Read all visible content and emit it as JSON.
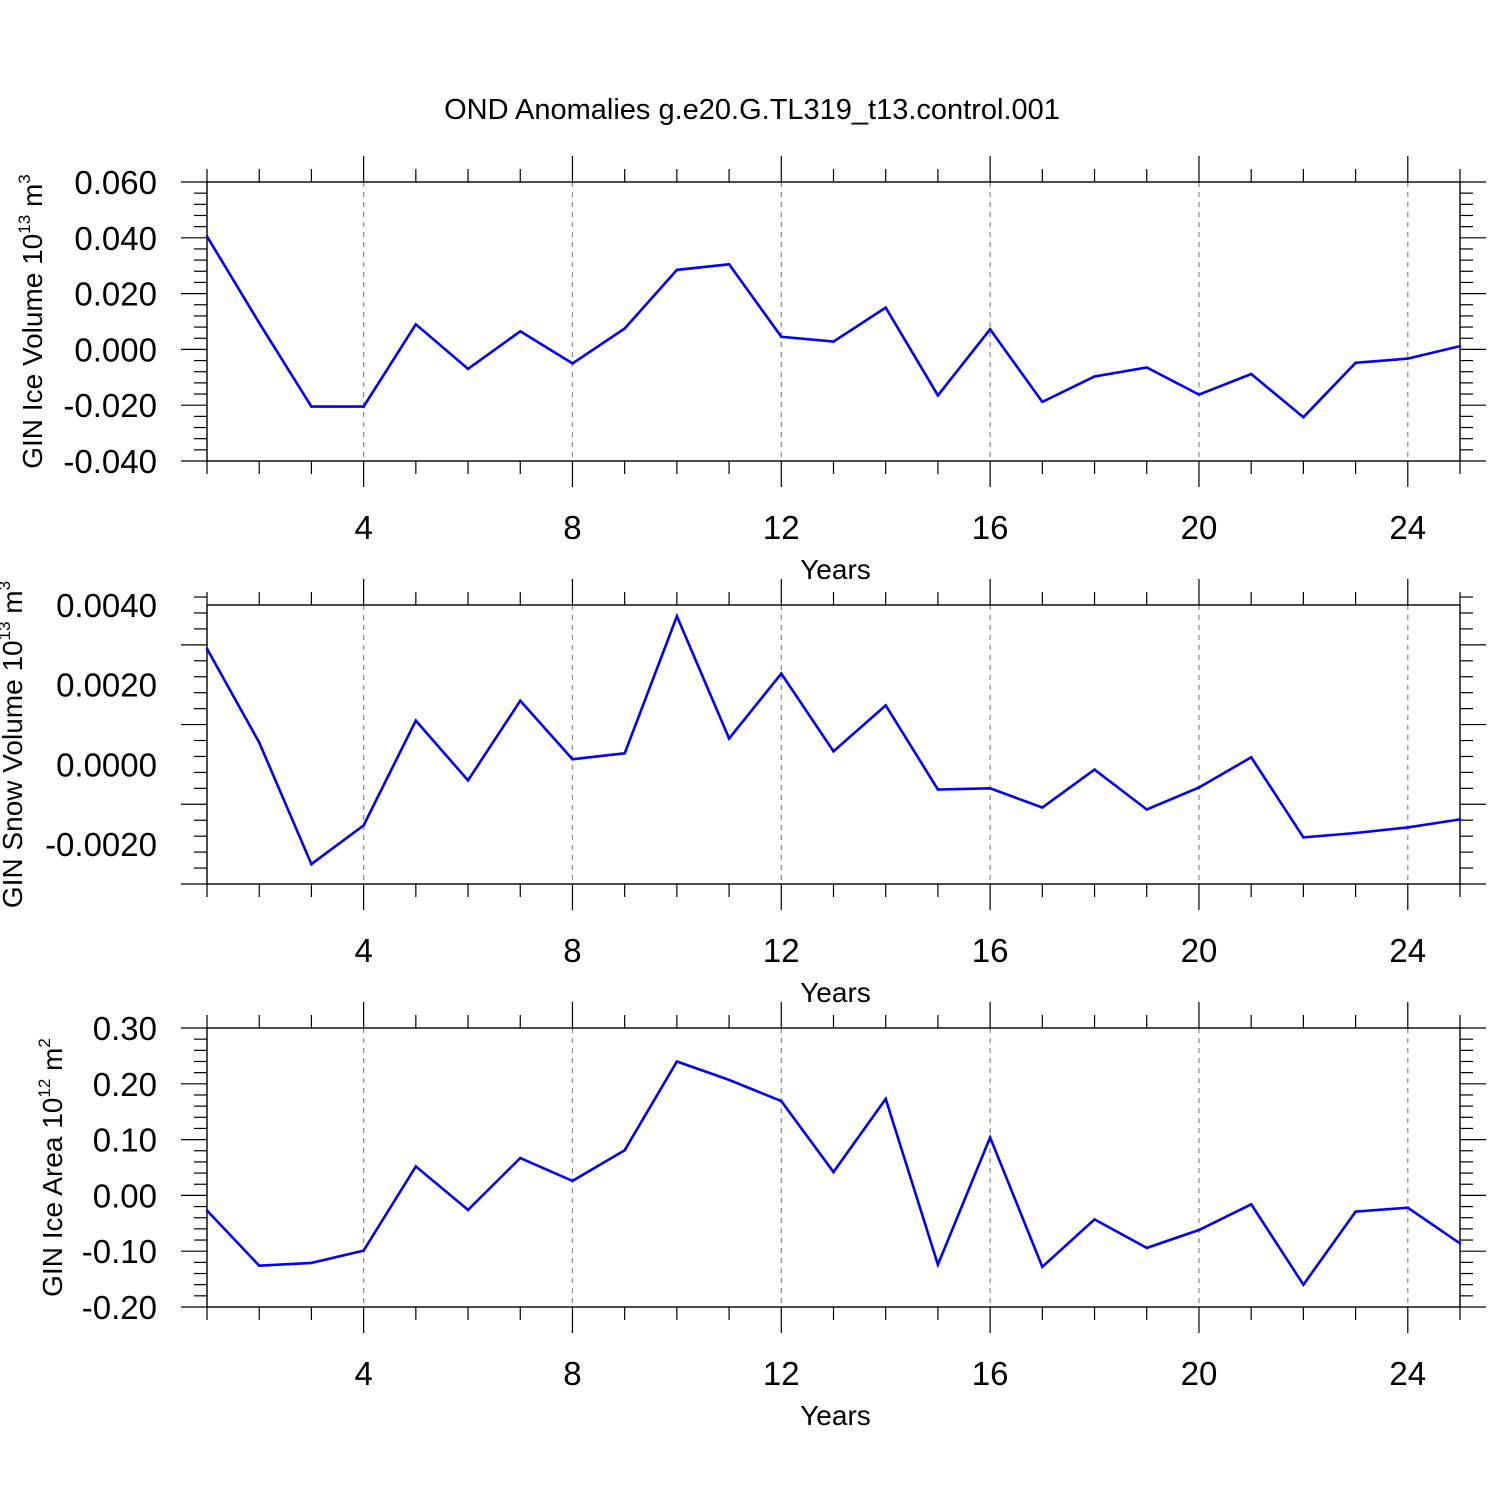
{
  "figure": {
    "title": "OND Anomalies g.e20.G.TL319_t13.control.001",
    "line_color": "#0000ff",
    "grid_color": "#888888"
  },
  "chart_data": [
    {
      "type": "line",
      "title": "OND Anomalies g.e20.G.TL319_t13.control.001",
      "xlabel": "Years",
      "ylabel": {
        "text": "GIN Ice Volume 10",
        "exponent": "13",
        "unit": " m",
        "unit_exponent": "3"
      },
      "xlim": [
        1,
        25
      ],
      "ylim": [
        -0.04,
        0.06
      ],
      "xticks": [
        4,
        8,
        12,
        16,
        20,
        24
      ],
      "xtick_labels": [
        "4",
        "8",
        "12",
        "16",
        "20",
        "24"
      ],
      "yticks": [
        -0.04,
        -0.02,
        0.0,
        0.02,
        0.04,
        0.06
      ],
      "ytick_labels": [
        "-0.040",
        "-0.020",
        "0.000",
        "0.020",
        "0.040",
        "0.060"
      ],
      "grid": "vertical dashed at major x ticks",
      "x": [
        1,
        2,
        3,
        4,
        5,
        6,
        7,
        8,
        9,
        10,
        11,
        12,
        13,
        14,
        15,
        16,
        17,
        18,
        19,
        20,
        21,
        22,
        23,
        24,
        25
      ],
      "series": [
        {
          "name": "GIN Ice Volume",
          "values": [
            0.0405,
            0.0095,
            -0.0205,
            -0.0205,
            0.009,
            -0.007,
            0.0065,
            -0.005,
            0.0075,
            0.0285,
            0.0305,
            0.0045,
            0.0028,
            0.015,
            -0.0165,
            0.0072,
            -0.0188,
            -0.0097,
            -0.0065,
            -0.0162,
            -0.0088,
            -0.0243,
            -0.0048,
            -0.0033,
            0.0012
          ]
        }
      ]
    },
    {
      "type": "line",
      "xlabel": "Years",
      "ylabel": {
        "text": "GIN Snow Volume 10",
        "exponent": "13",
        "unit": " m",
        "unit_exponent": "3"
      },
      "xlim": [
        1,
        25
      ],
      "ylim": [
        -0.003,
        0.004
      ],
      "xticks": [
        4,
        8,
        12,
        16,
        20,
        24
      ],
      "xtick_labels": [
        "4",
        "8",
        "12",
        "16",
        "20",
        "24"
      ],
      "yticks": [
        -0.002,
        0.0,
        0.002,
        0.004
      ],
      "ytick_labels": [
        "-0.0020",
        "0.0000",
        "0.0020",
        "0.0040"
      ],
      "grid": "vertical dashed at major x ticks",
      "x": [
        1,
        2,
        3,
        4,
        5,
        6,
        7,
        8,
        9,
        10,
        11,
        12,
        13,
        14,
        15,
        16,
        17,
        18,
        19,
        20,
        21,
        22,
        23,
        24,
        25
      ],
      "series": [
        {
          "name": "GIN Snow Volume",
          "values": [
            0.0029,
            0.00055,
            -0.0025,
            -0.00153,
            0.0011,
            -0.0004,
            0.0016,
            0.00013,
            0.00028,
            0.00372,
            0.00065,
            0.00228,
            0.00033,
            0.00148,
            -0.00063,
            -0.0006,
            -0.00108,
            -0.00013,
            -0.00113,
            -0.00058,
            0.00018,
            -0.00183,
            -0.00172,
            -0.00158,
            -0.00138
          ]
        }
      ]
    },
    {
      "type": "line",
      "xlabel": "Years",
      "ylabel": {
        "text": "GIN Ice Area 10",
        "exponent": "12",
        "unit": " m",
        "unit_exponent": "2"
      },
      "xlim": [
        1,
        25
      ],
      "ylim": [
        -0.2,
        0.3
      ],
      "xticks": [
        4,
        8,
        12,
        16,
        20,
        24
      ],
      "xtick_labels": [
        "4",
        "8",
        "12",
        "16",
        "20",
        "24"
      ],
      "yticks": [
        -0.2,
        -0.1,
        0.0,
        0.1,
        0.2,
        0.3
      ],
      "ytick_labels": [
        "-0.20",
        "-0.10",
        "0.00",
        "0.10",
        "0.20",
        "0.30"
      ],
      "grid": "vertical dashed at major x ticks",
      "x": [
        1,
        2,
        3,
        4,
        5,
        6,
        7,
        8,
        9,
        10,
        11,
        12,
        13,
        14,
        15,
        16,
        17,
        18,
        19,
        20,
        21,
        22,
        23,
        24,
        25
      ],
      "series": [
        {
          "name": "GIN Ice Area",
          "values": [
            -0.027,
            -0.126,
            -0.121,
            -0.099,
            0.052,
            -0.026,
            0.067,
            0.026,
            0.081,
            0.24,
            0.207,
            0.169,
            0.042,
            0.173,
            -0.124,
            0.104,
            -0.128,
            -0.043,
            -0.094,
            -0.062,
            -0.016,
            -0.16,
            -0.029,
            -0.022,
            -0.086
          ]
        }
      ]
    }
  ]
}
